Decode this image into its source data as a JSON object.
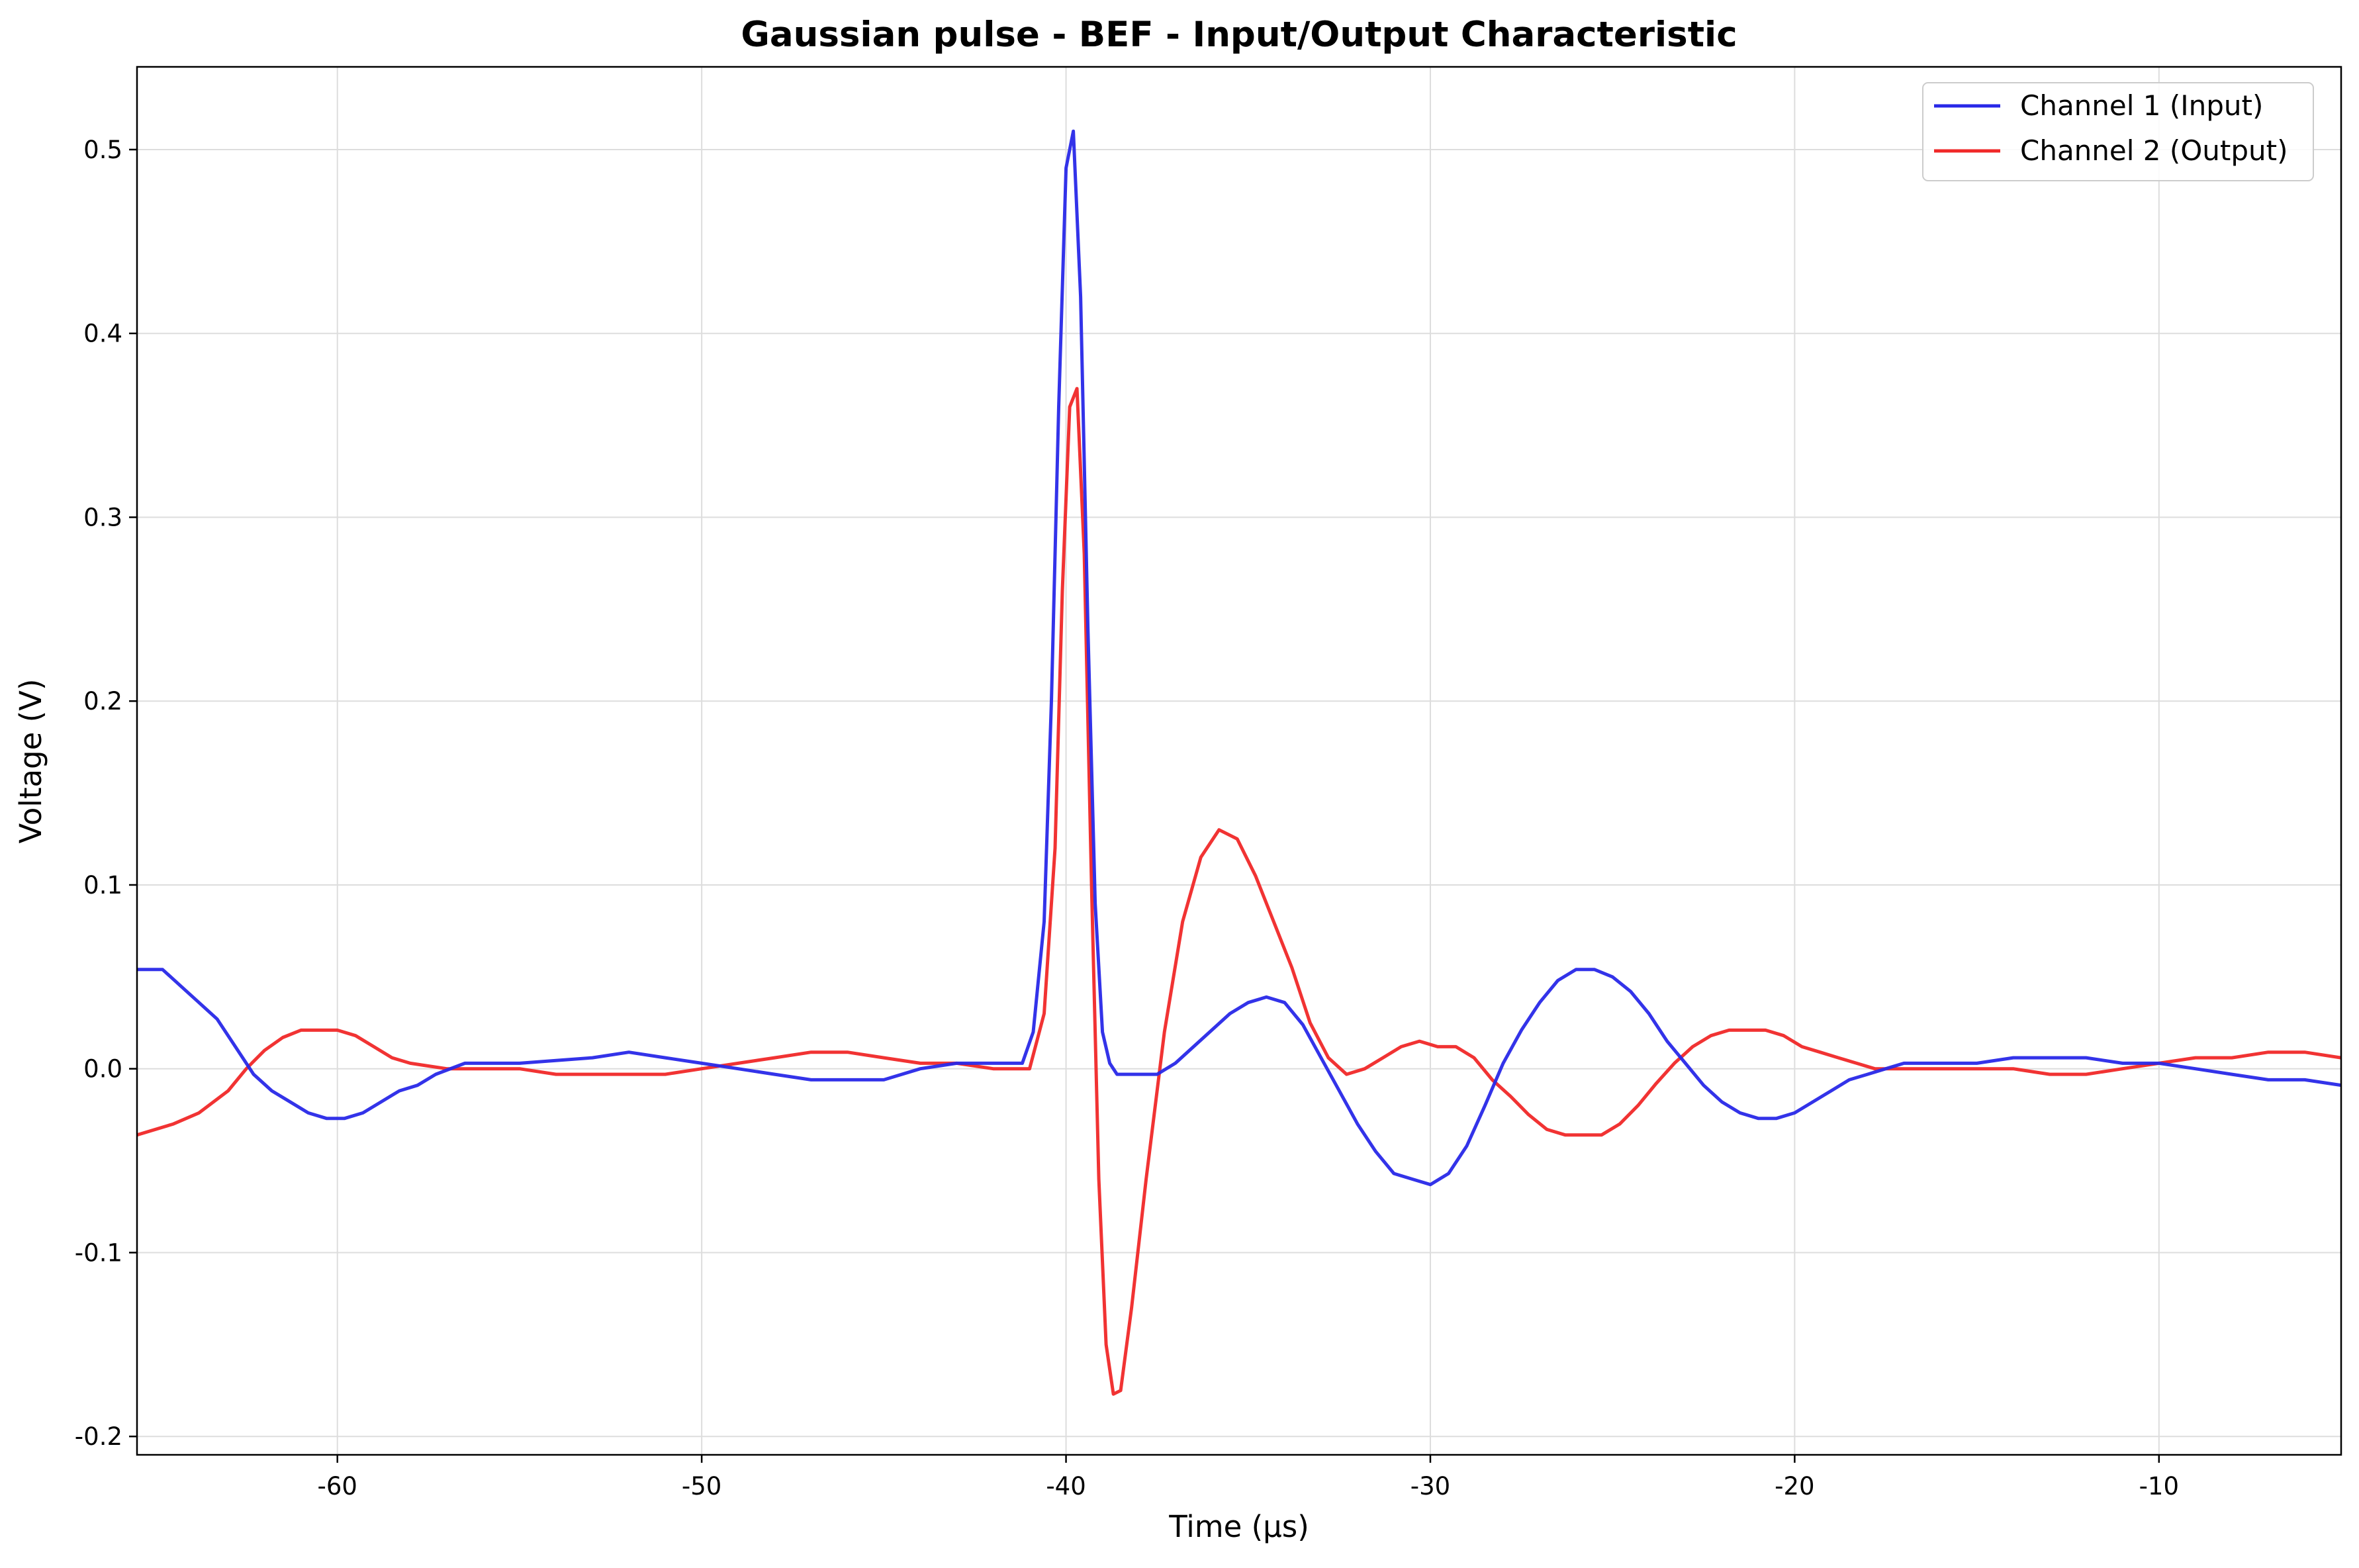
{
  "chart_data": {
    "type": "line",
    "title": "Gaussian pulse - BEF - Input/Output Characteristic",
    "xlabel": "Time (µs)",
    "ylabel": "Voltage (V)",
    "xlim": [
      -65.5,
      -5.0
    ],
    "ylim": [
      -0.21,
      0.545
    ],
    "xticks": [
      -60,
      -50,
      -40,
      -30,
      -20,
      -10
    ],
    "xtick_labels": [
      "-60",
      "-50",
      "-40",
      "-30",
      "-20",
      "-10"
    ],
    "yticks": [
      -0.2,
      -0.1,
      0.0,
      0.1,
      0.2,
      0.3,
      0.4,
      0.5
    ],
    "ytick_labels": [
      "-0.2",
      "-0.1",
      "0.0",
      "0.1",
      "0.2",
      "0.3",
      "0.4",
      "0.5"
    ],
    "grid": true,
    "legend_position": "top-right",
    "series": [
      {
        "name": "Channel 1 (Input)",
        "color": "#2828e8",
        "x": [
          -65.5,
          -64.8,
          -64.3,
          -63.8,
          -63.3,
          -62.8,
          -62.3,
          -61.8,
          -61.3,
          -60.8,
          -60.3,
          -59.8,
          -59.3,
          -58.8,
          -58.3,
          -57.8,
          -57.3,
          -56.5,
          -55.0,
          -53.0,
          -52.0,
          -51.0,
          -50.0,
          -49.0,
          -48.0,
          -47.0,
          -46.0,
          -45.0,
          -44.0,
          -43.0,
          -42.0,
          -41.2,
          -40.9,
          -40.6,
          -40.4,
          -40.2,
          -40.0,
          -39.8,
          -39.6,
          -39.4,
          -39.2,
          -39.0,
          -38.8,
          -38.6,
          -38.4,
          -38.0,
          -37.5,
          -37.0,
          -36.5,
          -36.0,
          -35.5,
          -35.0,
          -34.5,
          -34.0,
          -33.5,
          -33.0,
          -32.5,
          -32.0,
          -31.5,
          -31.0,
          -30.5,
          -30.0,
          -29.5,
          -29.0,
          -28.5,
          -28.0,
          -27.5,
          -27.0,
          -26.5,
          -26.0,
          -25.5,
          -25.0,
          -24.5,
          -24.0,
          -23.5,
          -23.0,
          -22.5,
          -22.0,
          -21.5,
          -21.0,
          -20.5,
          -20.0,
          -19.5,
          -19.0,
          -18.5,
          -18.0,
          -17.5,
          -17.0,
          -16.5,
          -16.0,
          -15.0,
          -14.0,
          -13.0,
          -12.0,
          -11.0,
          -10.0,
          -9.0,
          -8.0,
          -7.0,
          -6.0,
          -5.0
        ],
        "y": [
          0.054,
          0.054,
          0.045,
          0.036,
          0.027,
          0.012,
          -0.003,
          -0.012,
          -0.018,
          -0.024,
          -0.027,
          -0.027,
          -0.024,
          -0.018,
          -0.012,
          -0.009,
          -0.003,
          0.003,
          0.003,
          0.006,
          0.009,
          0.006,
          0.003,
          0.0,
          -0.003,
          -0.006,
          -0.006,
          -0.006,
          0.0,
          0.003,
          0.003,
          0.003,
          0.02,
          0.08,
          0.2,
          0.36,
          0.49,
          0.51,
          0.42,
          0.24,
          0.09,
          0.02,
          0.003,
          -0.003,
          -0.003,
          -0.003,
          -0.003,
          0.003,
          0.012,
          0.021,
          0.03,
          0.036,
          0.039,
          0.036,
          0.024,
          0.006,
          -0.012,
          -0.03,
          -0.045,
          -0.057,
          -0.06,
          -0.063,
          -0.057,
          -0.042,
          -0.02,
          0.003,
          0.021,
          0.036,
          0.048,
          0.054,
          0.054,
          0.05,
          0.042,
          0.03,
          0.015,
          0.003,
          -0.009,
          -0.018,
          -0.024,
          -0.027,
          -0.027,
          -0.024,
          -0.018,
          -0.012,
          -0.006,
          -0.003,
          0.0,
          0.003,
          0.003,
          0.003,
          0.003,
          0.006,
          0.006,
          0.006,
          0.003,
          0.003,
          0.0,
          -0.003,
          -0.006,
          -0.006,
          -0.009
        ]
      },
      {
        "name": "Channel 2 (Output)",
        "color": "#f02828",
        "x": [
          -65.5,
          -64.5,
          -63.8,
          -63.0,
          -62.5,
          -62.0,
          -61.5,
          -61.0,
          -60.5,
          -60.0,
          -59.5,
          -59.0,
          -58.5,
          -58.0,
          -57.0,
          -56.0,
          -55.0,
          -54.0,
          -53.0,
          -52.0,
          -51.0,
          -50.0,
          -49.0,
          -48.0,
          -47.0,
          -46.0,
          -45.0,
          -44.0,
          -43.0,
          -42.0,
          -41.0,
          -40.6,
          -40.3,
          -40.1,
          -39.9,
          -39.7,
          -39.5,
          -39.3,
          -39.1,
          -38.9,
          -38.7,
          -38.5,
          -38.2,
          -37.8,
          -37.3,
          -36.8,
          -36.3,
          -35.8,
          -35.3,
          -34.8,
          -34.3,
          -33.8,
          -33.3,
          -32.8,
          -32.3,
          -31.8,
          -31.3,
          -30.8,
          -30.3,
          -29.8,
          -29.3,
          -28.8,
          -28.3,
          -27.8,
          -27.3,
          -26.8,
          -26.3,
          -25.8,
          -25.3,
          -24.8,
          -24.3,
          -23.8,
          -23.3,
          -22.8,
          -22.3,
          -21.8,
          -21.3,
          -20.8,
          -20.3,
          -19.8,
          -19.3,
          -18.8,
          -18.3,
          -17.8,
          -17.0,
          -16.0,
          -15.0,
          -14.0,
          -13.0,
          -12.0,
          -11.0,
          -10.0,
          -9.0,
          -8.0,
          -7.0,
          -6.0,
          -5.0
        ],
        "y": [
          -0.036,
          -0.03,
          -0.024,
          -0.012,
          0.0,
          0.01,
          0.017,
          0.021,
          0.021,
          0.021,
          0.018,
          0.012,
          0.006,
          0.003,
          0.0,
          0.0,
          0.0,
          -0.003,
          -0.003,
          -0.003,
          -0.003,
          0.0,
          0.003,
          0.006,
          0.009,
          0.009,
          0.006,
          0.003,
          0.003,
          0.0,
          0.0,
          0.03,
          0.12,
          0.26,
          0.36,
          0.37,
          0.28,
          0.1,
          -0.06,
          -0.15,
          -0.177,
          -0.175,
          -0.13,
          -0.06,
          0.02,
          0.08,
          0.115,
          0.13,
          0.125,
          0.105,
          0.08,
          0.055,
          0.025,
          0.006,
          -0.003,
          0.0,
          0.006,
          0.012,
          0.015,
          0.012,
          0.012,
          0.006,
          -0.006,
          -0.015,
          -0.025,
          -0.033,
          -0.036,
          -0.036,
          -0.036,
          -0.03,
          -0.02,
          -0.008,
          0.003,
          0.012,
          0.018,
          0.021,
          0.021,
          0.021,
          0.018,
          0.012,
          0.009,
          0.006,
          0.003,
          0.0,
          0.0,
          0.0,
          0.0,
          0.0,
          -0.003,
          -0.003,
          0.0,
          0.003,
          0.006,
          0.006,
          0.009,
          0.009,
          0.006
        ]
      }
    ]
  }
}
